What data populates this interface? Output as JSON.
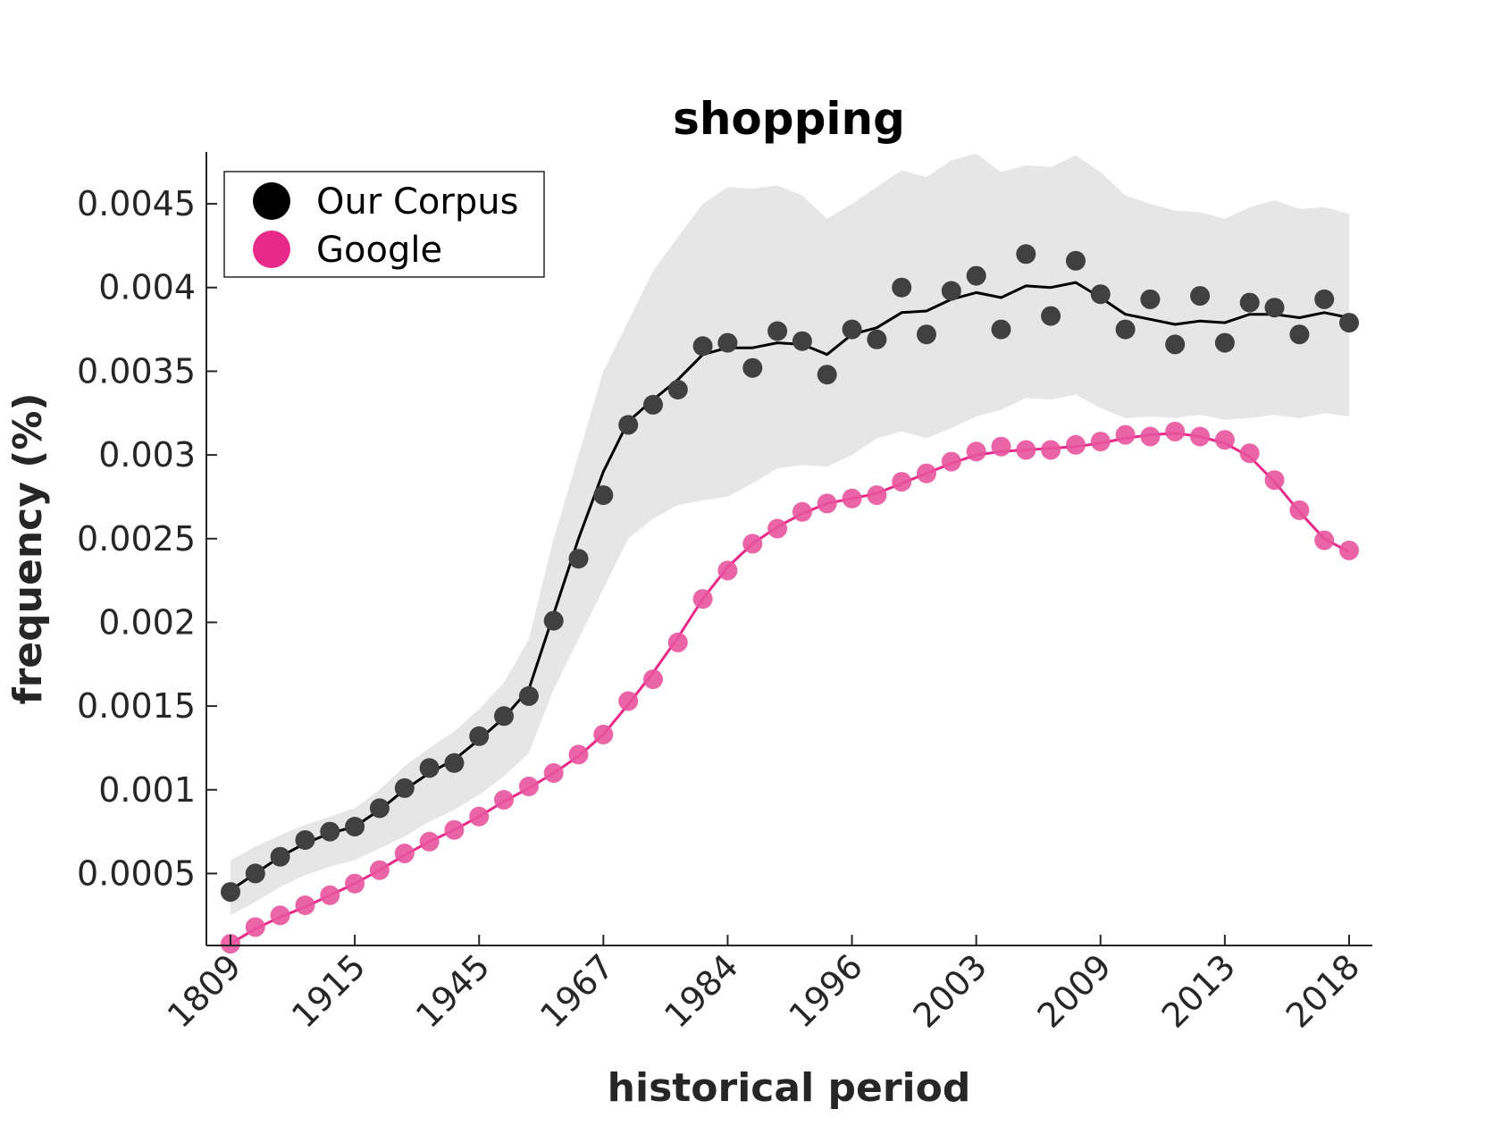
{
  "chart_data": {
    "type": "line",
    "title": "shopping",
    "xlabel": "historical period",
    "ylabel": "frequency (%)",
    "x_tick_labels": [
      "1809",
      "1915",
      "1945",
      "1967",
      "1984",
      "1996",
      "2003",
      "2009",
      "2013",
      "2018"
    ],
    "y_ticks": [
      0.0005,
      0.001,
      0.0015,
      0.002,
      0.0025,
      0.003,
      0.0035,
      0.004,
      0.0045
    ],
    "y_tick_labels": [
      "0.0005",
      "0.001",
      "0.0015",
      "0.002",
      "0.0025",
      "0.003",
      "0.0035",
      "0.004",
      "0.0045"
    ],
    "ylim": [
      7e-05,
      0.00481
    ],
    "x_count": 46,
    "x_tick_positions": [
      0,
      5,
      10,
      15,
      20,
      25,
      30,
      35,
      40,
      45
    ],
    "legend": {
      "position": "top-left"
    },
    "series": [
      {
        "name": "Our Corpus",
        "color": "#000000",
        "marker_color": "#404040",
        "points": [
          0.00039,
          0.0005,
          0.0006,
          0.0007,
          0.00075,
          0.00078,
          0.00089,
          0.00101,
          0.00113,
          0.00116,
          0.00132,
          0.00144,
          0.00156,
          0.00201,
          0.00238,
          0.00276,
          0.00318,
          0.0033,
          0.00339,
          0.00365,
          0.00367,
          0.00352,
          0.00374,
          0.00368,
          0.00348,
          0.00375,
          0.00369,
          0.004,
          0.00372,
          0.00398,
          0.00407,
          0.00375,
          0.0042,
          0.00383,
          0.00416,
          0.00396,
          0.00375,
          0.00393,
          0.00366,
          0.00395,
          0.00367,
          0.00391,
          0.00388,
          0.00372,
          0.00393,
          0.00379
        ],
        "line": [
          0.0004,
          0.0005,
          0.0006,
          0.00068,
          0.00074,
          0.00078,
          0.00088,
          0.001,
          0.0011,
          0.00118,
          0.0013,
          0.00143,
          0.0016,
          0.00205,
          0.0025,
          0.0029,
          0.0032,
          0.00333,
          0.00345,
          0.0036,
          0.00364,
          0.00364,
          0.00367,
          0.00366,
          0.0036,
          0.00372,
          0.00376,
          0.00385,
          0.00386,
          0.00393,
          0.00397,
          0.00394,
          0.00401,
          0.004,
          0.00403,
          0.00394,
          0.00384,
          0.00381,
          0.00378,
          0.0038,
          0.00379,
          0.00384,
          0.00384,
          0.00382,
          0.00385,
          0.00382
        ],
        "band_upper": [
          0.00058,
          0.00066,
          0.00073,
          0.00079,
          0.00084,
          0.00089,
          0.001,
          0.00114,
          0.00125,
          0.00135,
          0.00148,
          0.00164,
          0.0019,
          0.0025,
          0.003,
          0.0035,
          0.0038,
          0.0041,
          0.0043,
          0.0045,
          0.0046,
          0.00459,
          0.00461,
          0.00455,
          0.00441,
          0.0045,
          0.0046,
          0.0047,
          0.00466,
          0.00476,
          0.0048,
          0.00469,
          0.00473,
          0.00472,
          0.00479,
          0.00469,
          0.00455,
          0.0045,
          0.00446,
          0.00445,
          0.00441,
          0.00448,
          0.00452,
          0.00447,
          0.00448,
          0.00444
        ],
        "band_lower": [
          0.00025,
          0.00033,
          0.00042,
          0.00049,
          0.00054,
          0.00058,
          0.00065,
          0.00072,
          0.00081,
          0.00088,
          0.00097,
          0.00108,
          0.00122,
          0.0016,
          0.0019,
          0.0022,
          0.0025,
          0.00262,
          0.0027,
          0.00273,
          0.00275,
          0.00283,
          0.00292,
          0.00294,
          0.00293,
          0.003,
          0.0031,
          0.00314,
          0.0031,
          0.00316,
          0.00323,
          0.00327,
          0.00334,
          0.00333,
          0.00336,
          0.00328,
          0.00322,
          0.00323,
          0.00322,
          0.00324,
          0.00321,
          0.00322,
          0.00324,
          0.00322,
          0.00325,
          0.00323
        ]
      },
      {
        "name": "Google",
        "color": "#e7298a",
        "marker_color": "#e8539f",
        "points": [
          8e-05,
          0.00018,
          0.00025,
          0.00031,
          0.00037,
          0.00044,
          0.00052,
          0.00062,
          0.00069,
          0.00076,
          0.00084,
          0.00094,
          0.00102,
          0.0011,
          0.00121,
          0.00133,
          0.00153,
          0.00166,
          0.00188,
          0.00214,
          0.00231,
          0.00247,
          0.00256,
          0.00266,
          0.00271,
          0.00274,
          0.00276,
          0.00284,
          0.00289,
          0.00296,
          0.00302,
          0.00305,
          0.00303,
          0.00303,
          0.00306,
          0.00308,
          0.00312,
          0.00311,
          0.00314,
          0.00311,
          0.00309,
          0.00301,
          0.00285,
          0.00267,
          0.00249,
          0.00243
        ],
        "line": [
          8e-05,
          0.00017,
          0.00024,
          0.0003,
          0.00037,
          0.00044,
          0.00052,
          0.00061,
          0.00069,
          0.00076,
          0.00084,
          0.00093,
          0.00101,
          0.0011,
          0.0012,
          0.00133,
          0.00151,
          0.0017,
          0.00191,
          0.00214,
          0.00233,
          0.00247,
          0.00257,
          0.00265,
          0.00271,
          0.00274,
          0.00277,
          0.00283,
          0.00289,
          0.00295,
          0.003,
          0.00302,
          0.00303,
          0.00304,
          0.00305,
          0.00307,
          0.0031,
          0.00312,
          0.00313,
          0.00311,
          0.00307,
          0.00299,
          0.00284,
          0.00266,
          0.0025,
          0.00242
        ]
      }
    ]
  }
}
